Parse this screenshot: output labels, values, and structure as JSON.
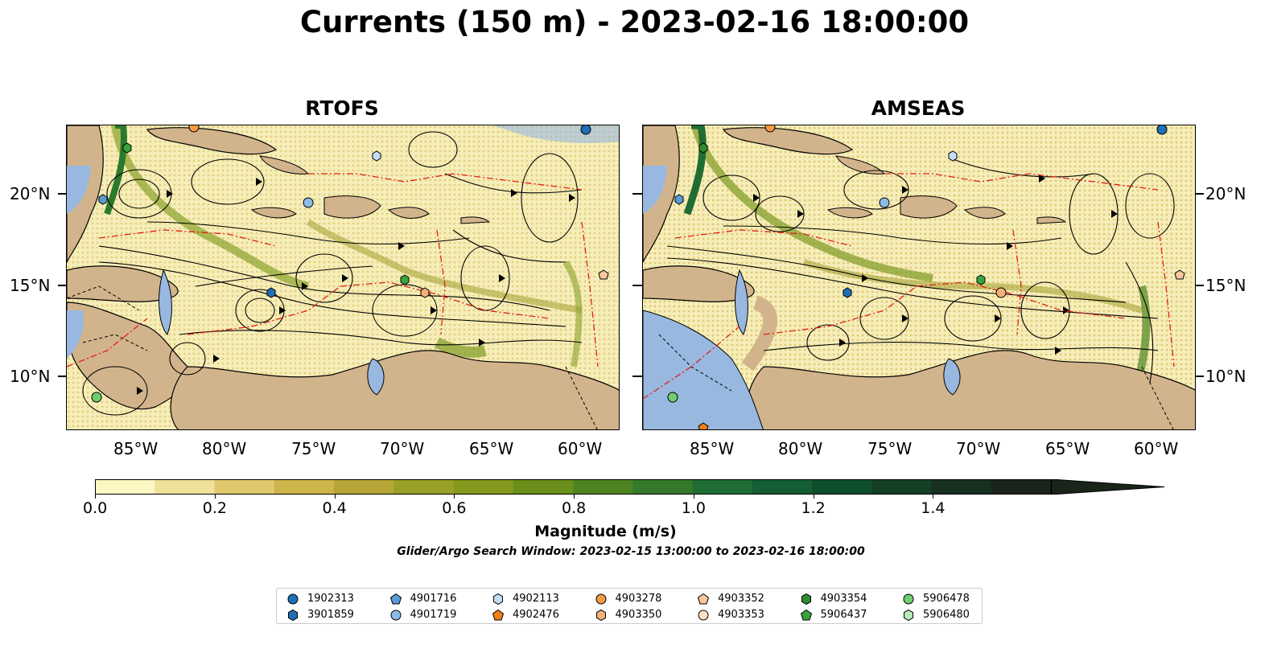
{
  "title": "Currents (150 m) - 2023-02-16 18:00:00",
  "panels": [
    {
      "title": "RTOFS"
    },
    {
      "title": "AMSEAS"
    }
  ],
  "lon_ticks": [
    "85°W",
    "80°W",
    "75°W",
    "70°W",
    "65°W",
    "60°W"
  ],
  "lat_ticks": [
    "20°N",
    "15°N",
    "10°N"
  ],
  "colorbar": {
    "label": "Magnitude (m/s)",
    "ticks": [
      "0.0",
      "0.2",
      "0.4",
      "0.6",
      "0.8",
      "1.0",
      "1.2",
      "1.4"
    ],
    "range": [
      0,
      1.6
    ],
    "extend": "max",
    "colors": [
      "#fdf7c4",
      "#efe19a",
      "#e0c96d",
      "#cdb54a",
      "#b5a636",
      "#9ba128",
      "#83991c",
      "#6a8f1a",
      "#4d8421",
      "#357a2b",
      "#1f6d33",
      "#135e32",
      "#0f4e2c",
      "#133f25",
      "#173020",
      "#1a241a"
    ]
  },
  "subtitle": "Glider/Argo Search Window: 2023-02-15 13:00:00 to 2023-02-16 18:00:00",
  "legend": [
    {
      "id": "1902313",
      "marker": "circle",
      "color": "#1f6fb4"
    },
    {
      "id": "3901859",
      "marker": "hexagon",
      "color": "#1f6fb4"
    },
    {
      "id": "4901716",
      "marker": "pentagon",
      "color": "#5b9bd5"
    },
    {
      "id": "4901719",
      "marker": "circle",
      "color": "#8bbbe6"
    },
    {
      "id": "4902113",
      "marker": "hexagon",
      "color": "#c3ddf5"
    },
    {
      "id": "4902476",
      "marker": "pentagon",
      "color": "#f07f15"
    },
    {
      "id": "4903278",
      "marker": "circle",
      "color": "#f59a45"
    },
    {
      "id": "4903350",
      "marker": "hexagon",
      "color": "#f7b075"
    },
    {
      "id": "4903352",
      "marker": "pentagon",
      "color": "#f9c79a"
    },
    {
      "id": "4903353",
      "marker": "circle",
      "color": "#fde0c6"
    },
    {
      "id": "4903354",
      "marker": "hexagon",
      "color": "#2e8b2e"
    },
    {
      "id": "5906437",
      "marker": "pentagon",
      "color": "#3ba33b"
    },
    {
      "id": "5906478",
      "marker": "circle",
      "color": "#6fcf6f"
    },
    {
      "id": "5906480",
      "marker": "hexagon",
      "color": "#b8eab8"
    }
  ]
}
